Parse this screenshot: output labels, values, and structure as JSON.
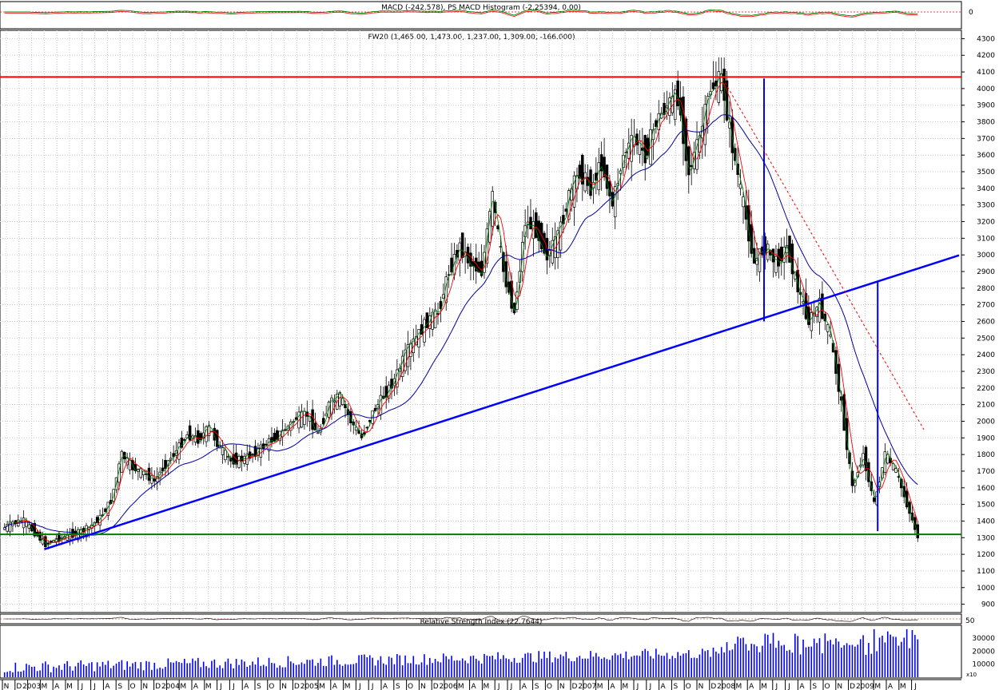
{
  "panels": {
    "macd": {
      "title": "MACD (-242.578), PS MACD Histogram (-2.25394, 0.00)",
      "axis_label": "0"
    },
    "price": {
      "title": "FW20 (1,465.00, 1,473.00, 1,237.00, 1,309.00, -166.000)"
    },
    "rsi": {
      "title": "Relative Strength Index (22.7644)",
      "axis_label": "50"
    },
    "volume": {
      "unit_label": "x10"
    }
  },
  "colors": {
    "resistance": "#ff0000",
    "support": "#008000",
    "trendline": "#0000ff",
    "ma_long": "#0000a0",
    "ma_short": "#ff0000",
    "envelope": "#008000",
    "candle": "#000000",
    "volume": "#0000ff"
  },
  "chart_data": {
    "type": "line",
    "title": "FW20 (1,465.00, 1,473.00, 1,237.00, 1,309.00, -166.000)",
    "xlabel": "",
    "ylabel": "",
    "ylim": [
      850,
      4350
    ],
    "y_ticks": [
      4300,
      4200,
      4100,
      4000,
      3900,
      3800,
      3700,
      3600,
      3500,
      3400,
      3300,
      3200,
      3100,
      3000,
      2900,
      2800,
      2700,
      2600,
      2500,
      2400,
      2300,
      2200,
      2100,
      2000,
      1900,
      1800,
      1700,
      1600,
      1500,
      1400,
      1300,
      1200,
      1100,
      1000,
      900
    ],
    "x_ticks": [
      "N",
      "D",
      "2003",
      "M",
      "A",
      "M",
      "J",
      "J",
      "A",
      "S",
      "O",
      "N",
      "D",
      "2004",
      "M",
      "A",
      "M",
      "J",
      "J",
      "A",
      "S",
      "O",
      "N",
      "D",
      "2005",
      "M",
      "A",
      "M",
      "J",
      "J",
      "A",
      "S",
      "O",
      "N",
      "D",
      "2006",
      "M",
      "A",
      "M",
      "J",
      "J",
      "A",
      "S",
      "O",
      "N",
      "D",
      "2007",
      "M",
      "A",
      "M",
      "J",
      "J",
      "A",
      "S",
      "O",
      "N",
      "D",
      "2008",
      "M",
      "A",
      "M",
      "J",
      "J",
      "A",
      "S",
      "O",
      "N",
      "D",
      "2009",
      "M",
      "A",
      "M",
      "J"
    ],
    "grid": true,
    "series": [
      {
        "values": [
          1350,
          1390,
          1400,
          1330,
          1260,
          1290,
          1310,
          1330,
          1360,
          1420,
          1520,
          1800,
          1720,
          1690,
          1640,
          1740,
          1820,
          1920,
          1890,
          1960,
          1840,
          1760,
          1770,
          1800,
          1850,
          1900,
          1950,
          2020,
          2040,
          1920,
          2100,
          2150,
          2000,
          1900,
          2050,
          2150,
          2250,
          2400,
          2500,
          2600,
          2650,
          2900,
          3050,
          2950,
          2900,
          3350,
          2900,
          2650,
          3200,
          3150,
          3000,
          3100,
          3350,
          3500,
          3400,
          3550,
          3300,
          3600,
          3700,
          3600,
          3800,
          3900,
          3950,
          3500,
          3700,
          4000,
          4060,
          3650,
          3300,
          2950,
          3050,
          2950,
          3050,
          2800,
          2600,
          2700,
          2500,
          2100,
          1600,
          1800,
          1500,
          1800,
          1700,
          1500,
          1309
        ]
      }
    ],
    "horizontal_levels": [
      {
        "value": 4070
      },
      {
        "value": 1320
      }
    ],
    "trendlines": [
      {
        "from": [
          "2003-02",
          1230
        ],
        "to": [
          "2009-05",
          3060
        ]
      }
    ],
    "vertical_markers": [
      {
        "x": "2007-11",
        "from": 2600,
        "to": 4060
      },
      {
        "x": "2008-08",
        "from": 1340,
        "to": 2840
      }
    ],
    "macd_zero": 0,
    "rsi_midline": 50,
    "volume_ticks": [
      30000,
      20000,
      10000
    ]
  }
}
